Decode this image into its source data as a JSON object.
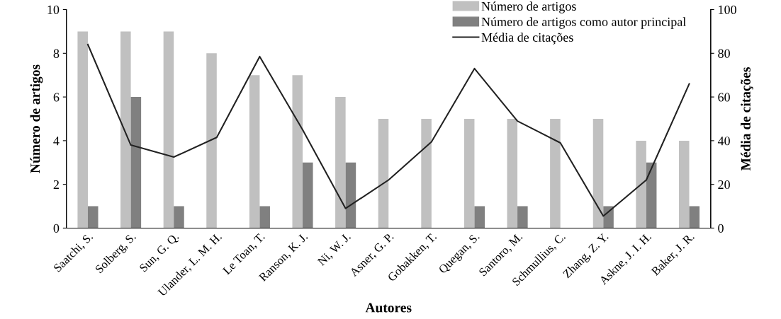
{
  "chart_data": {
    "type": "bar",
    "xlabel": "Autores",
    "ylabel": "Número de artigos",
    "y2label": "Média de citações",
    "categories": [
      "Saatchi, S.",
      "Solberg, S.",
      "Sun, G. Q.",
      "Ulander, L. M. H.",
      "Le Toan, T.",
      "Ranson, K. J.",
      "Ni, W. J.",
      "Asner, G. P.",
      "Gobakken, T.",
      "Quegan, S.",
      "Santoro, M.",
      "Schmullius, C.",
      "Zhang, Z. Y.",
      "Askne, J. I. H.",
      "Baker, J. R."
    ],
    "series": [
      {
        "name": "Número de artigos",
        "color": "#c0c0c0",
        "values": [
          9,
          9,
          9,
          8,
          7,
          7,
          6,
          5,
          5,
          5,
          5,
          5,
          5,
          4,
          4
        ]
      },
      {
        "name": "Número de artigos como autor principal",
        "color": "#808080",
        "values": [
          1,
          6,
          1,
          0,
          1,
          3,
          3,
          0,
          0,
          1,
          1,
          0,
          1,
          3,
          1
        ]
      },
      {
        "name": "Média de citações",
        "type": "line",
        "axis": "y2",
        "color": "#222222",
        "values": [
          84,
          38,
          32.5,
          41.5,
          78.5,
          45,
          9,
          22,
          39.5,
          73,
          49,
          39,
          5.5,
          22,
          66
        ]
      }
    ],
    "ylim": [
      0,
      10
    ],
    "yticks": [
      0,
      2,
      4,
      6,
      8,
      10
    ],
    "y2lim": [
      0,
      100
    ],
    "y2ticks": [
      0,
      20,
      40,
      60,
      80,
      100
    ],
    "grid": false,
    "legend": "top right",
    "marker": "none",
    "line_style": "solid"
  }
}
